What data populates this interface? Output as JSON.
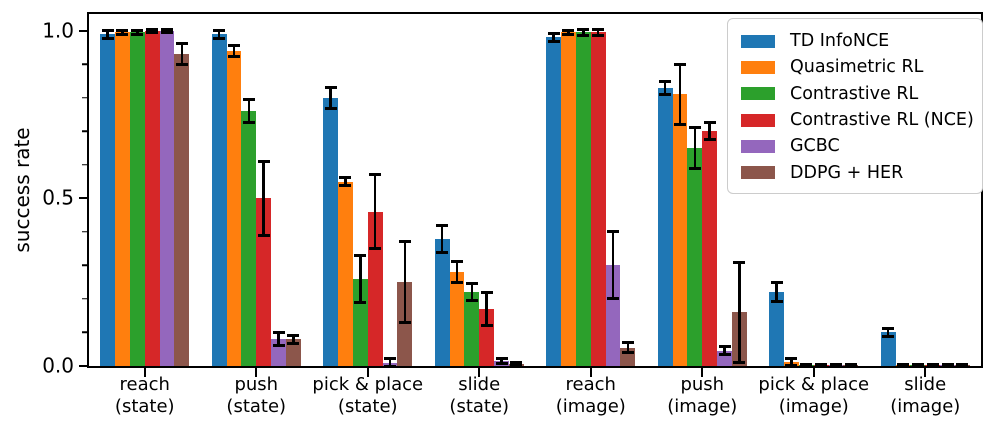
{
  "chart_data": {
    "type": "bar",
    "title": "",
    "ylabel": "success rate",
    "xlabel": "",
    "grid": false,
    "error_bars": true,
    "legend_position": "upper right",
    "ylim": [
      0,
      1.05
    ],
    "yticks": [
      {
        "value": 0.0,
        "label": "0.0"
      },
      {
        "value": 0.5,
        "label": "0.5"
      },
      {
        "value": 1.0,
        "label": "1.0"
      }
    ],
    "minor_yticks": [
      0.1,
      0.2,
      0.3,
      0.4,
      0.6,
      0.7,
      0.8,
      0.9
    ],
    "categories": [
      "reach\n(state)",
      "push\n(state)",
      "pick & place\n(state)",
      "slide\n(state)",
      "reach\n(image)",
      "push\n(image)",
      "pick & place\n(image)",
      "slide\n(image)"
    ],
    "series": [
      {
        "name": "TD InfoNCE",
        "color": "#1f77b4",
        "values": [
          0.99,
          0.99,
          0.8,
          0.38,
          0.98,
          0.83,
          0.22,
          0.1
        ],
        "errors": [
          0.012,
          0.012,
          0.032,
          0.04,
          0.012,
          0.02,
          0.028,
          0.012
        ]
      },
      {
        "name": "Quasimetric RL",
        "color": "#ff7f0e",
        "values": [
          0.995,
          0.94,
          0.55,
          0.28,
          0.995,
          0.81,
          0.012,
          0.002
        ],
        "errors": [
          0.006,
          0.016,
          0.012,
          0.032,
          0.006,
          0.09,
          0.01,
          0.003
        ]
      },
      {
        "name": "Contrastive RL",
        "color": "#2ca02c",
        "values": [
          0.995,
          0.76,
          0.26,
          0.22,
          0.995,
          0.65,
          0.002,
          0.002
        ],
        "errors": [
          0.006,
          0.035,
          0.07,
          0.025,
          0.01,
          0.06,
          0.003,
          0.003
        ]
      },
      {
        "name": "Contrastive RL (NCE)",
        "color": "#d62728",
        "values": [
          1.0,
          0.5,
          0.46,
          0.17,
          0.995,
          0.7,
          0.002,
          0.002
        ],
        "errors": [
          0.005,
          0.11,
          0.11,
          0.05,
          0.01,
          0.025,
          0.003,
          0.003
        ]
      },
      {
        "name": "GCBC",
        "color": "#9467bd",
        "values": [
          1.0,
          0.08,
          0.01,
          0.015,
          0.3,
          0.045,
          0.002,
          0.002
        ],
        "errors": [
          0.004,
          0.02,
          0.012,
          0.008,
          0.1,
          0.012,
          0.003,
          0.003
        ]
      },
      {
        "name": "DDPG + HER",
        "color": "#8c564b",
        "values": [
          0.93,
          0.08,
          0.25,
          0.005,
          0.055,
          0.16,
          0.002,
          0.002
        ],
        "errors": [
          0.032,
          0.012,
          0.12,
          0.004,
          0.016,
          0.15,
          0.003,
          0.003
        ]
      }
    ]
  }
}
